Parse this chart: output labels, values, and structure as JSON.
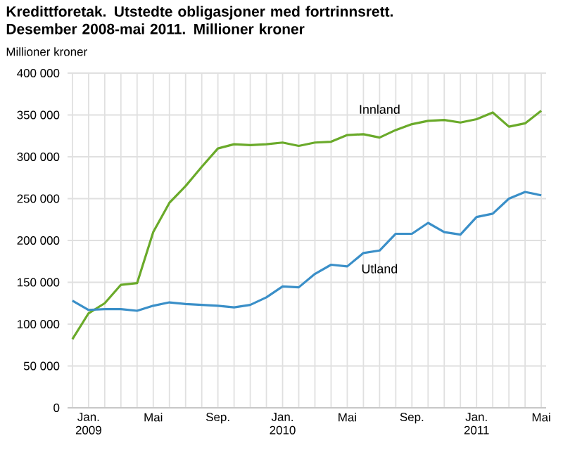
{
  "chart_data": {
    "type": "line",
    "title": "Kredittforetak. Utstedte obligasjoner med fortrinnsrett. Desember 2008-mai 2011. Millioner kroner",
    "ylabel": "Millioner kroner",
    "categories": [
      null,
      "Jan. 2009",
      null,
      null,
      null,
      "Mai",
      null,
      null,
      null,
      "Sep.",
      null,
      null,
      null,
      "Jan. 2010",
      null,
      null,
      null,
      "Mai",
      null,
      null,
      null,
      "Sep.",
      null,
      null,
      null,
      "Jan. 2011",
      null,
      null,
      null,
      "Mai"
    ],
    "series": [
      {
        "name": "Innland",
        "color": "#6aaa2a",
        "values": [
          82000,
          113000,
          125000,
          147000,
          149000,
          210000,
          245000,
          265000,
          288000,
          310000,
          315000,
          314000,
          315000,
          317000,
          313000,
          317000,
          318000,
          326000,
          327000,
          323000,
          332000,
          339000,
          343000,
          344000,
          341000,
          345000,
          353000,
          336000,
          340000,
          355000
        ]
      },
      {
        "name": "Utland",
        "color": "#3a8fc8",
        "values": [
          128000,
          117000,
          118000,
          118000,
          116000,
          122000,
          126000,
          124000,
          123000,
          122000,
          120000,
          123000,
          132000,
          145000,
          144000,
          160000,
          171000,
          169000,
          185000,
          188000,
          208000,
          208000,
          221000,
          210000,
          207000,
          228000,
          232000,
          250000,
          258000,
          254000
        ]
      }
    ],
    "ylim": [
      0,
      400000
    ],
    "yticks": [
      0,
      {
        "value": 50000,
        "label": "50 000"
      },
      {
        "value": 100000,
        "label": "100 000"
      },
      {
        "value": 150000,
        "label": "150 000"
      },
      {
        "value": 200000,
        "label": "200 000"
      },
      {
        "value": 250000,
        "label": "250 000"
      },
      {
        "value": 300000,
        "label": "300 000"
      },
      {
        "value": 350000,
        "label": "350 000"
      },
      {
        "value": 400000,
        "label": "400 000"
      }
    ],
    "grid": true,
    "legend": false,
    "marker": "none",
    "line_style": "solid"
  }
}
